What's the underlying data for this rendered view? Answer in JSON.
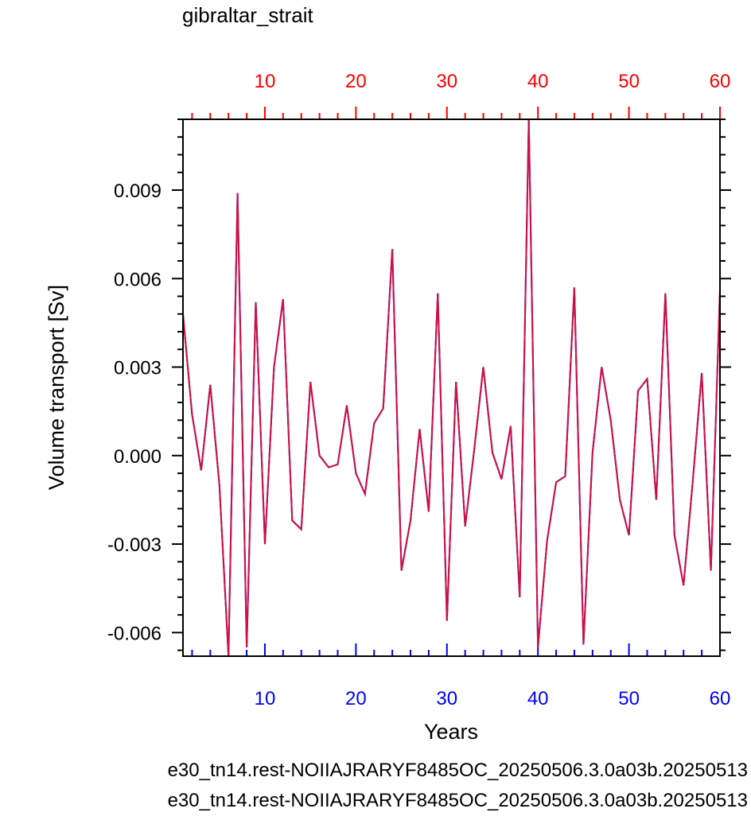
{
  "chart_data": {
    "type": "line",
    "title": "gibraltar_strait",
    "xlabel": "Years",
    "ylabel": "Volume transport [Sv]",
    "xlim": [
      1,
      60
    ],
    "ylim": [
      -0.0068,
      0.0114
    ],
    "x_ticks": [
      10,
      20,
      30,
      40,
      50,
      60
    ],
    "y_ticks": [
      -0.006,
      -0.003,
      0.0,
      0.003,
      0.006,
      0.009
    ],
    "y_tick_labels": [
      "-0.006",
      "-0.003",
      "0.000",
      "0.003",
      "0.006",
      "0.009"
    ],
    "bottom_axis_color": "#0000ff",
    "top_axis_color": "#ff0000",
    "grid": false,
    "x": [
      1,
      2,
      3,
      4,
      5,
      6,
      7,
      8,
      9,
      10,
      11,
      12,
      13,
      14,
      15,
      16,
      17,
      18,
      19,
      20,
      21,
      22,
      23,
      24,
      25,
      26,
      27,
      28,
      29,
      30,
      31,
      32,
      33,
      34,
      35,
      36,
      37,
      38,
      39,
      40,
      41,
      42,
      43,
      44,
      45,
      46,
      47,
      48,
      49,
      50,
      51,
      52,
      53,
      54,
      55,
      56,
      57,
      58,
      59,
      60
    ],
    "series": [
      {
        "name": "e30_tn14.rest-NOIIAJRARYF8485OC_20250506.3.0a03b.20250513",
        "color": "#0000ff",
        "values": [
          0.0048,
          0.0014,
          -0.0005,
          0.0024,
          -0.001,
          -0.0068,
          0.0089,
          -0.0065,
          0.0052,
          -0.003,
          0.003,
          0.0053,
          -0.0022,
          -0.0025,
          0.0025,
          0.0,
          -0.0004,
          -0.0003,
          0.0017,
          -0.0006,
          -0.0013,
          0.0011,
          0.0016,
          0.007,
          -0.0039,
          -0.0022,
          0.0009,
          -0.0019,
          0.0055,
          -0.0056,
          0.0025,
          -0.0024,
          0.0002,
          0.003,
          0.0001,
          -0.0008,
          0.001,
          -0.0048,
          0.0114,
          -0.0065,
          -0.0029,
          -0.0009,
          -0.0007,
          0.0057,
          -0.0064,
          0.0001,
          0.003,
          0.0012,
          -0.0015,
          -0.0027,
          0.0022,
          0.0026,
          -0.0015,
          0.0055,
          -0.0027,
          -0.0044,
          -0.0009,
          0.0028,
          -0.0039,
          0.0056
        ]
      },
      {
        "name": "e30_tn14.rest-NOIIAJRARYF8485OC_20250506.3.0a03b.20250513",
        "color": "#ff0000",
        "values": [
          0.0048,
          0.0014,
          -0.0005,
          0.0024,
          -0.001,
          -0.0068,
          0.0089,
          -0.0065,
          0.0052,
          -0.003,
          0.003,
          0.0053,
          -0.0022,
          -0.0025,
          0.0025,
          0.0,
          -0.0004,
          -0.0003,
          0.0017,
          -0.0006,
          -0.0013,
          0.0011,
          0.0016,
          0.007,
          -0.0039,
          -0.0022,
          0.0009,
          -0.0019,
          0.0055,
          -0.0056,
          0.0025,
          -0.0024,
          0.0002,
          0.003,
          0.0001,
          -0.0008,
          0.001,
          -0.0048,
          0.0114,
          -0.0065,
          -0.0029,
          -0.0009,
          -0.0007,
          0.0057,
          -0.0064,
          0.0001,
          0.003,
          0.0012,
          -0.0015,
          -0.0027,
          0.0022,
          0.0026,
          -0.0015,
          0.0055,
          -0.0027,
          -0.0044,
          -0.0009,
          0.0028,
          -0.0039,
          0.0056
        ]
      }
    ]
  }
}
